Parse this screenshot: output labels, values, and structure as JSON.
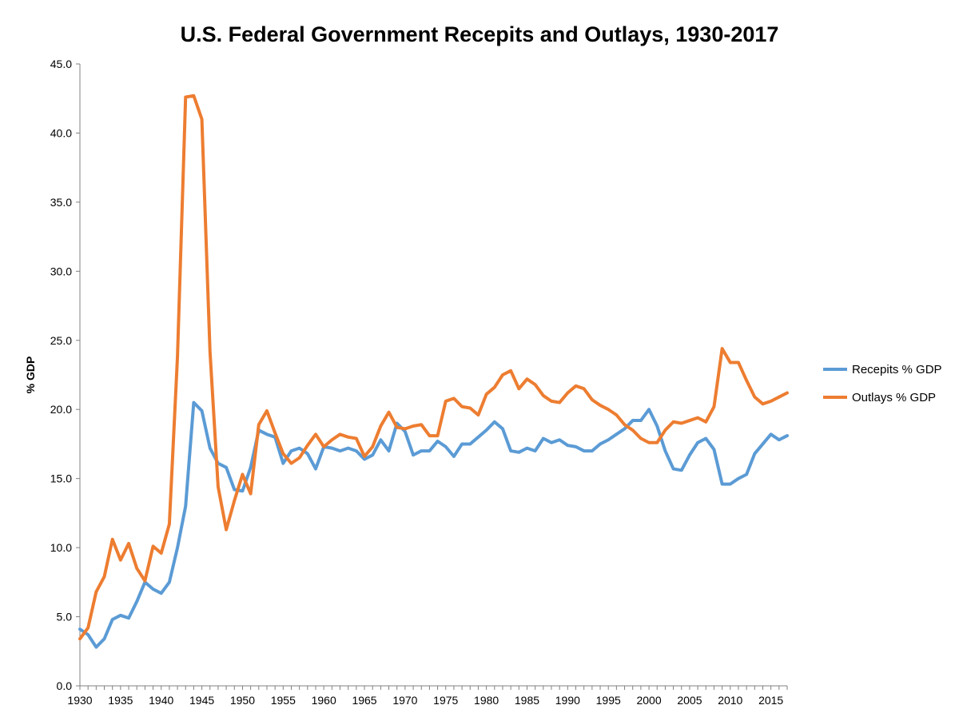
{
  "chart_data": {
    "type": "line",
    "title": "U.S. Federal Government Recepits and Outlays, 1930-2017",
    "ylabel": "% GDP",
    "xlabel": "",
    "ylim": [
      0,
      45
    ],
    "xlim": [
      1930,
      2017
    ],
    "y_ticks": [
      "0.0",
      "5.0",
      "10.0",
      "15.0",
      "20.0",
      "25.0",
      "30.0",
      "35.0",
      "40.0",
      "45.0"
    ],
    "x_ticks": [
      "1930",
      "1935",
      "1940",
      "1945",
      "1950",
      "1955",
      "1960",
      "1965",
      "1970",
      "1975",
      "1980",
      "1985",
      "1990",
      "1995",
      "2000",
      "2005",
      "2010",
      "2015"
    ],
    "grid": false,
    "legend_position": "right",
    "x": [
      1930,
      1931,
      1932,
      1933,
      1934,
      1935,
      1936,
      1937,
      1938,
      1939,
      1940,
      1941,
      1942,
      1943,
      1944,
      1945,
      1946,
      1947,
      1948,
      1949,
      1950,
      1951,
      1952,
      1953,
      1954,
      1955,
      1956,
      1957,
      1958,
      1959,
      1960,
      1961,
      1962,
      1963,
      1964,
      1965,
      1966,
      1967,
      1968,
      1969,
      1970,
      1971,
      1972,
      1973,
      1974,
      1975,
      1976,
      1977,
      1978,
      1979,
      1980,
      1981,
      1982,
      1983,
      1984,
      1985,
      1986,
      1987,
      1988,
      1989,
      1990,
      1991,
      1992,
      1993,
      1994,
      1995,
      1996,
      1997,
      1998,
      1999,
      2000,
      2001,
      2002,
      2003,
      2004,
      2005,
      2006,
      2007,
      2008,
      2009,
      2010,
      2011,
      2012,
      2013,
      2014,
      2015,
      2016,
      2017
    ],
    "series": [
      {
        "name": "Recepits % GDP",
        "color": "#5b9bd5",
        "values": [
          4.1,
          3.7,
          2.8,
          3.4,
          4.8,
          5.1,
          4.9,
          6.1,
          7.5,
          7.0,
          6.7,
          7.5,
          10.0,
          13.0,
          20.5,
          19.9,
          17.2,
          16.1,
          15.8,
          14.2,
          14.1,
          15.8,
          18.5,
          18.2,
          18.0,
          16.1,
          17.0,
          17.2,
          16.8,
          15.7,
          17.3,
          17.2,
          17.0,
          17.2,
          17.0,
          16.4,
          16.7,
          17.8,
          17.0,
          19.0,
          18.4,
          16.7,
          17.0,
          17.0,
          17.7,
          17.3,
          16.6,
          17.5,
          17.5,
          18.0,
          18.5,
          19.1,
          18.6,
          17.0,
          16.9,
          17.2,
          17.0,
          17.9,
          17.6,
          17.8,
          17.4,
          17.3,
          17.0,
          17.0,
          17.5,
          17.8,
          18.2,
          18.6,
          19.2,
          19.2,
          20.0,
          18.8,
          17.0,
          15.7,
          15.6,
          16.7,
          17.6,
          17.9,
          17.1,
          14.6,
          14.6,
          15.0,
          15.3,
          16.8,
          17.5,
          18.2,
          17.8,
          18.1
        ]
      },
      {
        "name": "Outlays % GDP",
        "color": "#ed7d31",
        "values": [
          3.4,
          4.2,
          6.8,
          7.9,
          10.6,
          9.1,
          10.3,
          8.5,
          7.6,
          10.1,
          9.6,
          11.7,
          23.8,
          42.6,
          42.7,
          41.0,
          24.2,
          14.4,
          11.3,
          13.4,
          15.3,
          13.9,
          18.9,
          19.9,
          18.3,
          16.8,
          16.1,
          16.5,
          17.4,
          18.2,
          17.3,
          17.8,
          18.2,
          18.0,
          17.9,
          16.6,
          17.3,
          18.8,
          19.8,
          18.7,
          18.6,
          18.8,
          18.9,
          18.1,
          18.1,
          20.6,
          20.8,
          20.2,
          20.1,
          19.6,
          21.1,
          21.6,
          22.5,
          22.8,
          21.5,
          22.2,
          21.8,
          21.0,
          20.6,
          20.5,
          21.2,
          21.7,
          21.5,
          20.7,
          20.3,
          20.0,
          19.6,
          18.9,
          18.5,
          17.9,
          17.6,
          17.6,
          18.5,
          19.1,
          19.0,
          19.2,
          19.4,
          19.1,
          20.2,
          24.4,
          23.4,
          23.4,
          22.1,
          20.9,
          20.4,
          20.6,
          20.9,
          21.2
        ]
      }
    ]
  }
}
